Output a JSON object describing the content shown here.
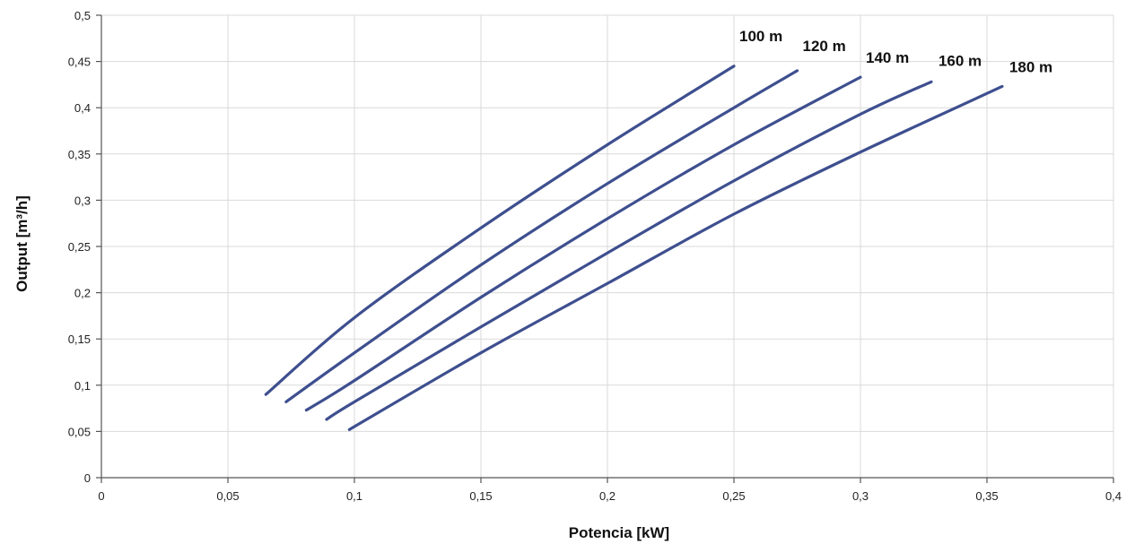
{
  "chart_data": {
    "type": "line",
    "title": "",
    "xlabel": "Potencia  [kW]",
    "ylabel": "Output [m³/h]",
    "xlim": [
      0,
      0.4
    ],
    "ylim": [
      0,
      0.5
    ],
    "x_ticks": [
      "0",
      "0,05",
      "0,1",
      "0,15",
      "0,2",
      "0,25",
      "0,3",
      "0,35",
      "0,4"
    ],
    "y_ticks": [
      "0",
      "0,05",
      "0,1",
      "0,15",
      "0,2",
      "0,25",
      "0,3",
      "0,35",
      "0,4",
      "0,45",
      "0,5"
    ],
    "grid": true,
    "line_color": "#3e4f8f",
    "series": [
      {
        "name": "100 m",
        "x": [
          0.065,
          0.1,
          0.15,
          0.2,
          0.25
        ],
        "y": [
          0.09,
          0.173,
          0.27,
          0.36,
          0.445
        ]
      },
      {
        "name": "120 m",
        "x": [
          0.073,
          0.1,
          0.15,
          0.2,
          0.25,
          0.275
        ],
        "y": [
          0.082,
          0.135,
          0.23,
          0.318,
          0.4,
          0.44
        ]
      },
      {
        "name": "140 m",
        "x": [
          0.081,
          0.1,
          0.15,
          0.2,
          0.25,
          0.3
        ],
        "y": [
          0.073,
          0.105,
          0.195,
          0.28,
          0.36,
          0.433
        ]
      },
      {
        "name": "160 m",
        "x": [
          0.089,
          0.1,
          0.15,
          0.2,
          0.25,
          0.3,
          0.328
        ],
        "y": [
          0.063,
          0.082,
          0.163,
          0.243,
          0.321,
          0.393,
          0.428
        ]
      },
      {
        "name": "180 m",
        "x": [
          0.098,
          0.15,
          0.2,
          0.25,
          0.3,
          0.356
        ],
        "y": [
          0.052,
          0.135,
          0.21,
          0.285,
          0.352,
          0.423
        ]
      }
    ]
  }
}
